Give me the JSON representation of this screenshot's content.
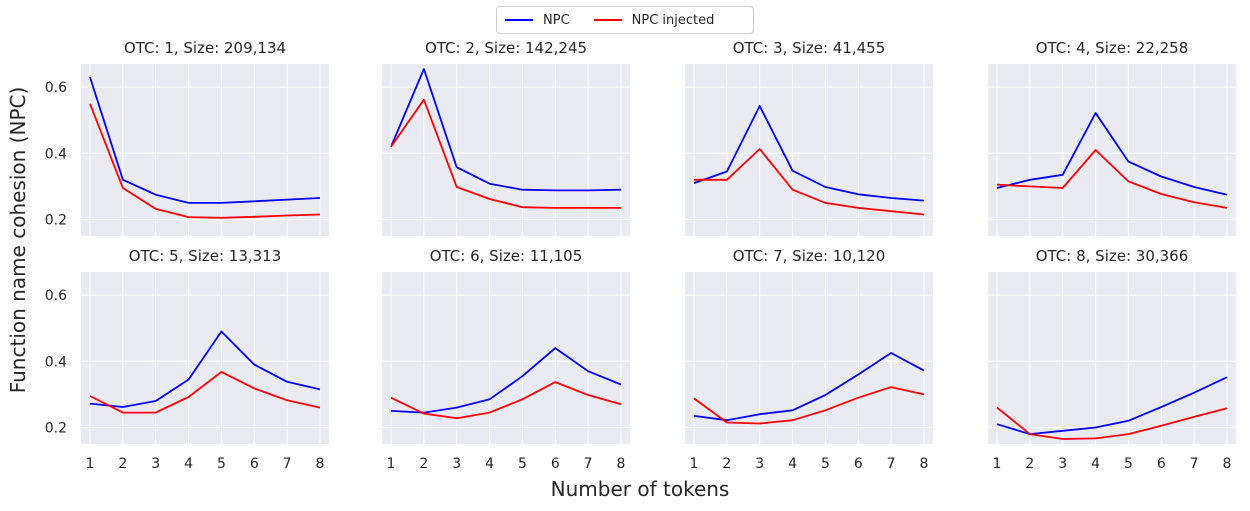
{
  "chart_data": {
    "type": "line",
    "layout": "2x4 grid of subplots, shared axes",
    "legend": {
      "placement": "top-center",
      "entries": [
        {
          "name": "NPC",
          "color": "#0000ff"
        },
        {
          "name": "NPC injected",
          "color": "#ff0000"
        }
      ]
    },
    "xlabel": "Number of tokens",
    "ylabel": "Function name cohesion (NPC)",
    "x": [
      1,
      2,
      3,
      4,
      5,
      6,
      7,
      8
    ],
    "xticks": [
      "1",
      "2",
      "3",
      "4",
      "5",
      "6",
      "7",
      "8"
    ],
    "ylim": [
      0.15,
      0.67
    ],
    "yticks": [
      "0.2",
      "0.4",
      "0.6"
    ],
    "grid": true,
    "background": "#eaeaf2",
    "panels": [
      {
        "title": "OTC: 1, Size: 209,134",
        "series": [
          {
            "name": "NPC",
            "values": [
              0.63,
              0.32,
              0.275,
              0.25,
              0.25,
              0.255,
              0.26,
              0.265
            ]
          },
          {
            "name": "NPC injected",
            "values": [
              0.55,
              0.295,
              0.232,
              0.207,
              0.205,
              0.208,
              0.212,
              0.215
            ]
          }
        ]
      },
      {
        "title": "OTC: 2, Size: 142,245",
        "series": [
          {
            "name": "NPC",
            "values": [
              0.42,
              0.655,
              0.358,
              0.308,
              0.29,
              0.288,
              0.288,
              0.29
            ]
          },
          {
            "name": "NPC injected",
            "values": [
              0.42,
              0.562,
              0.298,
              0.262,
              0.237,
              0.235,
              0.235,
              0.235
            ]
          }
        ]
      },
      {
        "title": "OTC: 3, Size: 41,455",
        "series": [
          {
            "name": "NPC",
            "values": [
              0.31,
              0.345,
              0.543,
              0.347,
              0.298,
              0.276,
              0.265,
              0.257
            ]
          },
          {
            "name": "NPC injected",
            "values": [
              0.32,
              0.32,
              0.413,
              0.29,
              0.25,
              0.235,
              0.225,
              0.215
            ]
          }
        ]
      },
      {
        "title": "OTC: 4, Size: 22,258",
        "series": [
          {
            "name": "NPC",
            "values": [
              0.295,
              0.32,
              0.335,
              0.522,
              0.375,
              0.33,
              0.298,
              0.275
            ]
          },
          {
            "name": "NPC injected",
            "values": [
              0.305,
              0.3,
              0.295,
              0.41,
              0.315,
              0.277,
              0.252,
              0.235
            ]
          }
        ]
      },
      {
        "title": "OTC: 5, Size: 13,313",
        "series": [
          {
            "name": "NPC",
            "values": [
              0.272,
              0.262,
              0.28,
              0.345,
              0.49,
              0.39,
              0.338,
              0.315
            ]
          },
          {
            "name": "NPC injected",
            "values": [
              0.295,
              0.245,
              0.245,
              0.292,
              0.368,
              0.318,
              0.282,
              0.26
            ]
          }
        ]
      },
      {
        "title": "OTC: 6, Size: 11,105",
        "series": [
          {
            "name": "NPC",
            "values": [
              0.25,
              0.245,
              0.26,
              0.285,
              0.355,
              0.44,
              0.37,
              0.33
            ]
          },
          {
            "name": "NPC injected",
            "values": [
              0.29,
              0.242,
              0.228,
              0.245,
              0.285,
              0.337,
              0.298,
              0.27
            ]
          }
        ]
      },
      {
        "title": "OTC: 7, Size: 10,120",
        "series": [
          {
            "name": "NPC",
            "values": [
              0.235,
              0.222,
              0.24,
              0.252,
              0.298,
              0.36,
              0.425,
              0.372
            ]
          },
          {
            "name": "NPC injected",
            "values": [
              0.288,
              0.215,
              0.212,
              0.222,
              0.252,
              0.29,
              0.322,
              0.3
            ]
          }
        ]
      },
      {
        "title": "OTC: 8, Size: 30,366",
        "series": [
          {
            "name": "NPC",
            "values": [
              0.21,
              0.18,
              0.19,
              0.2,
              0.22,
              0.262,
              0.305,
              0.352
            ]
          },
          {
            "name": "NPC injected",
            "values": [
              0.26,
              0.18,
              0.165,
              0.167,
              0.18,
              0.205,
              0.232,
              0.258
            ]
          }
        ]
      }
    ]
  }
}
